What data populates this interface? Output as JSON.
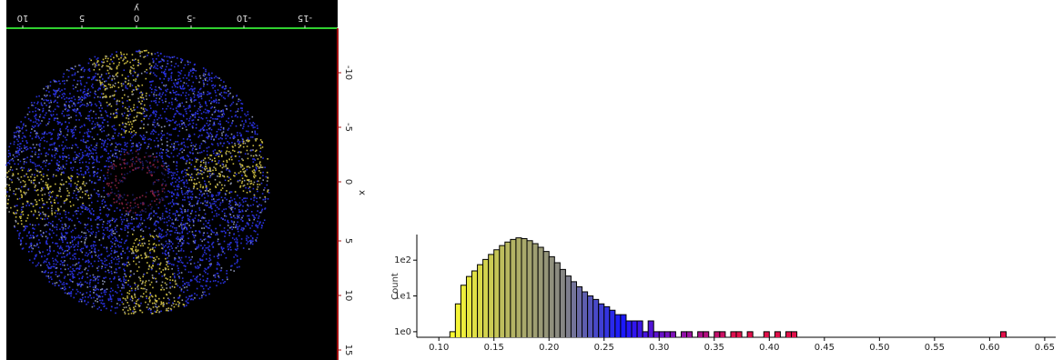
{
  "chart_data": [
    {
      "type": "point-cloud",
      "x_label": "y",
      "y_label": "x",
      "xticks": [
        10,
        5,
        0,
        -5,
        -10,
        -15
      ],
      "yticks": [
        -10,
        -5,
        0,
        5,
        10,
        15
      ]
    },
    {
      "type": "histogram",
      "y_label": "Count",
      "log_y": true,
      "xlim": [
        0.08,
        0.66
      ],
      "ylim": [
        0.7,
        520
      ],
      "xticks": [
        {
          "value": 0.1,
          "label": "0.10"
        },
        0.15,
        {
          "value": 0.2,
          "label": "0.20"
        },
        0.25,
        {
          "value": 0.3,
          "label": "0.30"
        },
        0.35,
        {
          "value": 0.4,
          "label": "0.40"
        },
        0.45,
        {
          "value": 0.5,
          "label": "0.50"
        },
        0.55,
        {
          "value": 0.6,
          "label": "0.60"
        },
        0.65
      ],
      "yticks": [
        {
          "value": 1,
          "label": "1e0"
        },
        {
          "value": 10,
          "label": "1e1"
        },
        {
          "value": 100,
          "label": "1e2"
        }
      ],
      "colormap": [
        "#ffff30",
        "#b8b860",
        "#858585",
        "#1818ff",
        "#8a10b0",
        "#e0104a"
      ],
      "colormap_range": [
        0.11,
        0.37
      ],
      "bins": [
        0.11,
        0.115,
        0.12,
        0.125,
        0.13,
        0.135,
        0.14,
        0.145,
        0.15,
        0.155,
        0.16,
        0.165,
        0.17,
        0.175,
        0.18,
        0.185,
        0.19,
        0.195,
        0.2,
        0.205,
        0.21,
        0.215,
        0.22,
        0.225,
        0.23,
        0.235,
        0.24,
        0.245,
        0.25,
        0.255,
        0.26,
        0.265,
        0.27,
        0.275,
        0.28,
        0.285,
        0.29,
        0.295,
        0.3,
        0.305,
        0.31,
        0.315,
        0.32,
        0.325,
        0.33,
        0.335,
        0.34,
        0.345,
        0.35,
        0.355,
        0.36,
        0.365,
        0.37,
        0.375,
        0.38,
        0.385,
        0.39,
        0.395,
        0.4,
        0.405,
        0.41,
        0.415,
        0.42,
        0.425,
        0.43,
        0.435,
        0.44,
        0.445,
        0.45,
        0.455,
        0.46,
        0.465,
        0.47,
        0.475,
        0.48,
        0.485,
        0.49,
        0.495,
        0.5,
        0.505,
        0.51,
        0.515,
        0.52,
        0.525,
        0.53,
        0.535,
        0.54,
        0.545,
        0.55,
        0.555,
        0.56,
        0.565,
        0.57,
        0.575,
        0.58,
        0.585,
        0.59,
        0.595,
        0.6,
        0.605,
        0.61,
        0.615
      ],
      "values": [
        1,
        6,
        20,
        35,
        50,
        75,
        105,
        145,
        195,
        255,
        320,
        380,
        420,
        400,
        350,
        290,
        230,
        175,
        125,
        85,
        55,
        36,
        25,
        18,
        13,
        10,
        8,
        6,
        5,
        4,
        3,
        3,
        2,
        2,
        2,
        1,
        2,
        1,
        1,
        1,
        1,
        0,
        1,
        1,
        0,
        1,
        1,
        0,
        1,
        1,
        0,
        1,
        1,
        0,
        1,
        0,
        0,
        1,
        0,
        1,
        0,
        1,
        1,
        0,
        0,
        0,
        0,
        0,
        0,
        0,
        0,
        0,
        0,
        0,
        0,
        0,
        0,
        0,
        0,
        0,
        0,
        0,
        0,
        0,
        0,
        0,
        0,
        0,
        0,
        0,
        0,
        0,
        0,
        0,
        0,
        0,
        0,
        0,
        0,
        0,
        1
      ]
    }
  ]
}
